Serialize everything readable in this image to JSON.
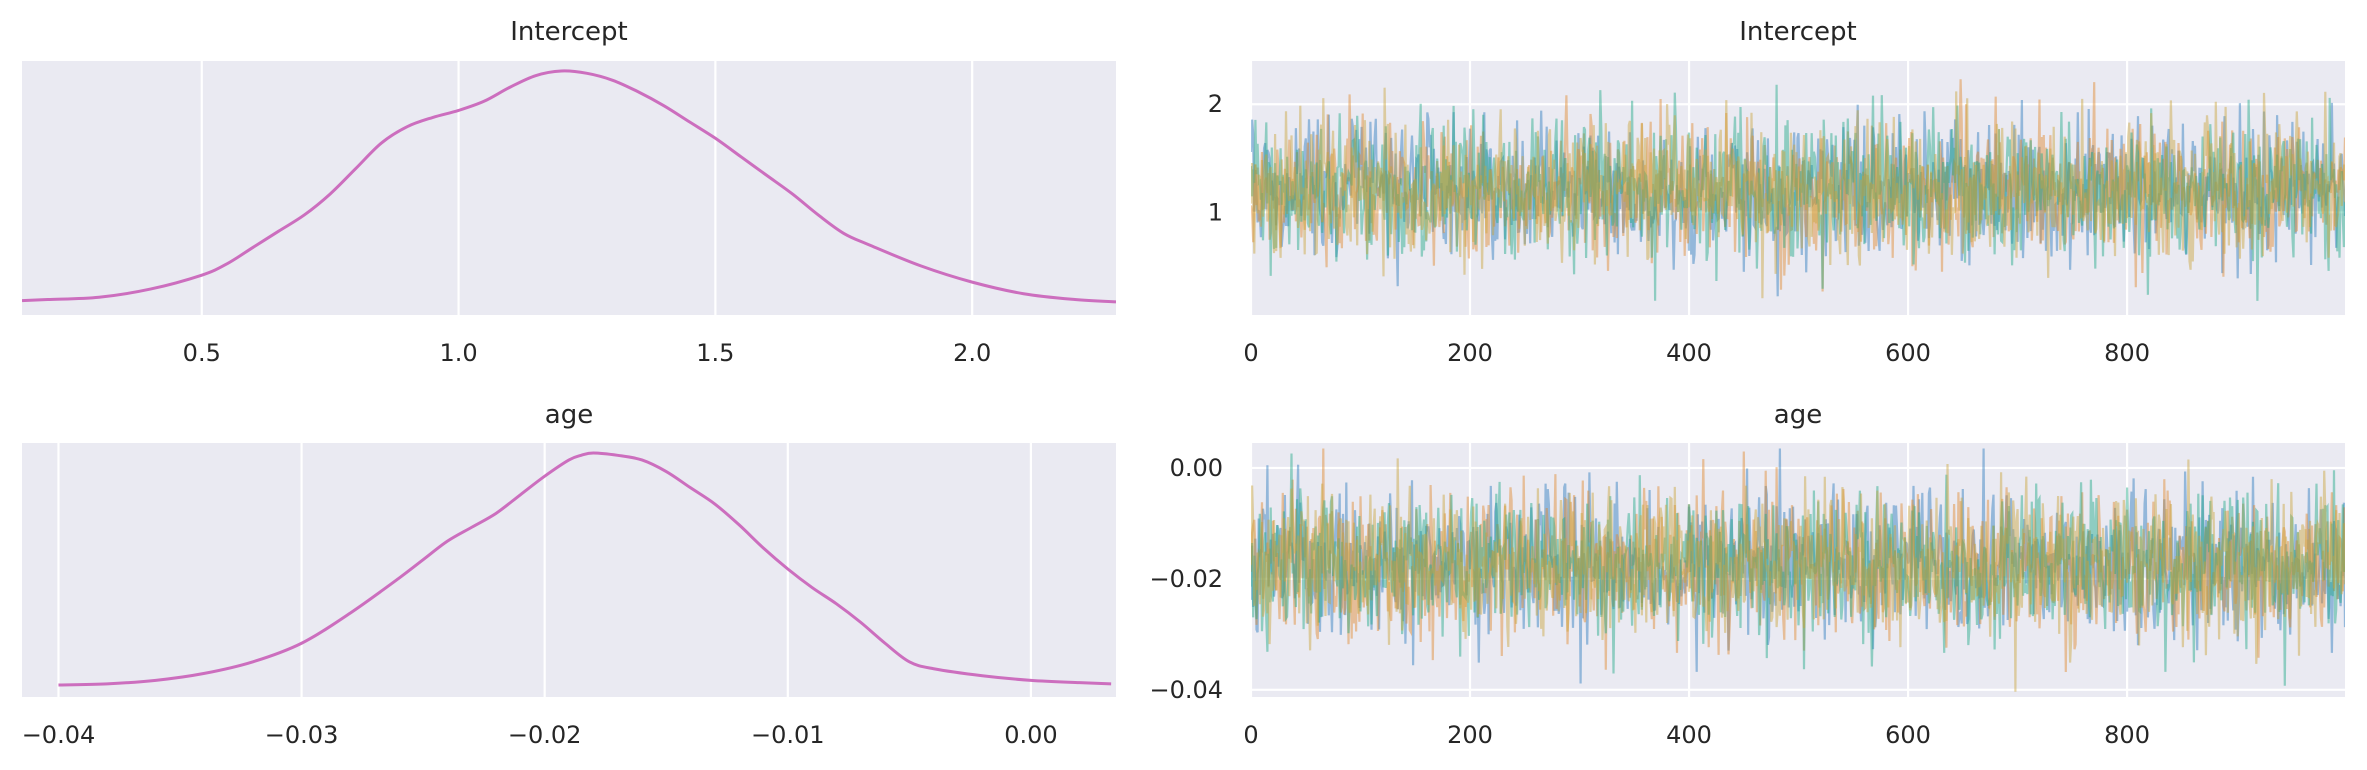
{
  "chart_data": [
    {
      "type": "line",
      "kind": "density",
      "title": "Intercept",
      "xlim": [
        0.15,
        2.28
      ],
      "xticks": [
        0.5,
        1.0,
        1.5,
        2.0
      ],
      "xtick_labels": [
        "0.5",
        "1.0",
        "1.5",
        "2.0"
      ],
      "yticks": [],
      "grid": true,
      "series_color": "#cc6ebe",
      "x": [
        0.15,
        0.2,
        0.3,
        0.4,
        0.5,
        0.55,
        0.6,
        0.65,
        0.7,
        0.75,
        0.8,
        0.85,
        0.9,
        0.95,
        1.0,
        1.05,
        1.1,
        1.15,
        1.2,
        1.25,
        1.3,
        1.35,
        1.4,
        1.45,
        1.5,
        1.55,
        1.6,
        1.65,
        1.7,
        1.75,
        1.8,
        1.9,
        2.0,
        2.1,
        2.2,
        2.28
      ],
      "y": [
        0.01,
        0.015,
        0.025,
        0.06,
        0.12,
        0.17,
        0.24,
        0.31,
        0.38,
        0.47,
        0.58,
        0.69,
        0.76,
        0.8,
        0.83,
        0.87,
        0.93,
        0.98,
        1.0,
        0.99,
        0.96,
        0.91,
        0.85,
        0.78,
        0.71,
        0.63,
        0.55,
        0.47,
        0.38,
        0.3,
        0.25,
        0.16,
        0.09,
        0.04,
        0.015,
        0.005
      ]
    },
    {
      "type": "line",
      "kind": "trace",
      "title": "Intercept",
      "xlim": [
        0,
        999
      ],
      "ylim": [
        0.05,
        2.4
      ],
      "xticks": [
        0,
        200,
        400,
        600,
        800
      ],
      "xtick_labels": [
        "0",
        "200",
        "400",
        "600",
        "800"
      ],
      "yticks": [
        1,
        2
      ],
      "ytick_labels": [
        "1",
        "2"
      ],
      "grid": true,
      "n_draws": 1000,
      "chain_colors": [
        "#2a7bbd",
        "#e0882a",
        "#1fa886",
        "#c9a33a"
      ],
      "chain_center": 1.2,
      "chain_spread": 0.32,
      "value_range": [
        0.18,
        2.3
      ]
    },
    {
      "type": "line",
      "kind": "density",
      "title": "age",
      "xlim": [
        -0.0415,
        0.0035
      ],
      "xticks": [
        -0.04,
        -0.03,
        -0.02,
        -0.01,
        0.0
      ],
      "xtick_labels": [
        "−0.04",
        "−0.03",
        "−0.02",
        "−0.01",
        "0.00"
      ],
      "yticks": [],
      "grid": true,
      "series_color": "#cc6ebe",
      "x": [
        -0.04,
        -0.038,
        -0.036,
        -0.034,
        -0.032,
        -0.03,
        -0.028,
        -0.026,
        -0.025,
        -0.024,
        -0.023,
        -0.022,
        -0.021,
        -0.02,
        -0.019,
        -0.0185,
        -0.018,
        -0.017,
        -0.016,
        -0.015,
        -0.014,
        -0.013,
        -0.012,
        -0.011,
        -0.01,
        -0.009,
        -0.008,
        -0.007,
        -0.006,
        -0.005,
        -0.004,
        -0.002,
        0.0,
        0.002,
        0.0033
      ],
      "y": [
        0.0,
        0.005,
        0.02,
        0.05,
        0.1,
        0.18,
        0.31,
        0.46,
        0.54,
        0.62,
        0.68,
        0.74,
        0.82,
        0.9,
        0.97,
        0.99,
        1.0,
        0.99,
        0.97,
        0.92,
        0.85,
        0.78,
        0.69,
        0.59,
        0.5,
        0.42,
        0.35,
        0.27,
        0.18,
        0.1,
        0.07,
        0.04,
        0.02,
        0.01,
        0.005
      ]
    },
    {
      "type": "line",
      "kind": "trace",
      "title": "age",
      "xlim": [
        0,
        999
      ],
      "ylim": [
        -0.0413,
        0.0045
      ],
      "xticks": [
        0,
        200,
        400,
        600,
        800
      ],
      "xtick_labels": [
        "0",
        "200",
        "400",
        "600",
        "800"
      ],
      "yticks": [
        0.0,
        -0.02,
        -0.04
      ],
      "ytick_labels": [
        "0.00",
        "−0.02",
        "−0.04"
      ],
      "grid": true,
      "n_draws": 1000,
      "chain_colors": [
        "#2a7bbd",
        "#e0882a",
        "#1fa886",
        "#c9a33a"
      ],
      "chain_center": -0.0175,
      "chain_spread": 0.0066,
      "value_range": [
        -0.0405,
        0.0035
      ]
    }
  ]
}
